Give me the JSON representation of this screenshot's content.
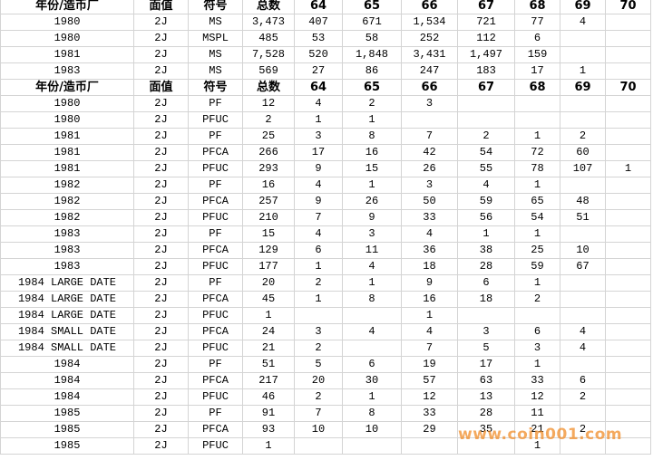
{
  "table": {
    "sections": [
      {
        "header": [
          "年份/造币厂",
          "面值",
          "符号",
          "总数",
          "64",
          "65",
          "66",
          "67",
          "68",
          "69",
          "70"
        ],
        "rows": [
          [
            "1980",
            "2J",
            "MS",
            "3,473",
            "407",
            "671",
            "1,534",
            "721",
            "77",
            "4",
            null
          ],
          [
            "1980",
            "2J",
            "MSPL",
            "485",
            "53",
            "58",
            "252",
            "112",
            "6",
            null,
            null
          ],
          [
            "1981",
            "2J",
            "MS",
            "7,528",
            "520",
            "1,848",
            "3,431",
            "1,497",
            "159",
            null,
            null
          ],
          [
            "1983",
            "2J",
            "MS",
            "569",
            "27",
            "86",
            "247",
            "183",
            "17",
            "1",
            null
          ]
        ]
      },
      {
        "header": [
          "年份/造币厂",
          "面值",
          "符号",
          "总数",
          "64",
          "65",
          "66",
          "67",
          "68",
          "69",
          "70"
        ],
        "rows": [
          [
            "1980",
            "2J",
            "PF",
            "12",
            "4",
            "2",
            "3",
            null,
            null,
            null,
            null
          ],
          [
            "1980",
            "2J",
            "PFUC",
            "2",
            "1",
            "1",
            null,
            null,
            null,
            null,
            null
          ],
          [
            "1981",
            "2J",
            "PF",
            "25",
            "3",
            "8",
            "7",
            "2",
            "1",
            "2",
            null
          ],
          [
            "1981",
            "2J",
            "PFCA",
            "266",
            "17",
            "16",
            "42",
            "54",
            "72",
            "60",
            null
          ],
          [
            "1981",
            "2J",
            "PFUC",
            "293",
            "9",
            "15",
            "26",
            "55",
            "78",
            "107",
            "1"
          ],
          [
            "1982",
            "2J",
            "PF",
            "16",
            "4",
            "1",
            "3",
            "4",
            "1",
            null,
            null
          ],
          [
            "1982",
            "2J",
            "PFCA",
            "257",
            "9",
            "26",
            "50",
            "59",
            "65",
            "48",
            null
          ],
          [
            "1982",
            "2J",
            "PFUC",
            "210",
            "7",
            "9",
            "33",
            "56",
            "54",
            "51",
            null
          ],
          [
            "1983",
            "2J",
            "PF",
            "15",
            "4",
            "3",
            "4",
            "1",
            "1",
            null,
            null
          ],
          [
            "1983",
            "2J",
            "PFCA",
            "129",
            "6",
            "11",
            "36",
            "38",
            "25",
            "10",
            null
          ],
          [
            "1983",
            "2J",
            "PFUC",
            "177",
            "1",
            "4",
            "18",
            "28",
            "59",
            "67",
            null
          ],
          [
            "1984 LARGE DATE",
            "2J",
            "PF",
            "20",
            "2",
            "1",
            "9",
            "6",
            "1",
            null,
            null
          ],
          [
            "1984 LARGE DATE",
            "2J",
            "PFCA",
            "45",
            "1",
            "8",
            "16",
            "18",
            "2",
            null,
            null
          ],
          [
            "1984 LARGE DATE",
            "2J",
            "PFUC",
            "1",
            null,
            null,
            "1",
            null,
            null,
            null,
            null
          ],
          [
            "1984 SMALL DATE",
            "2J",
            "PFCA",
            "24",
            "3",
            "4",
            "4",
            "3",
            "6",
            "4",
            null
          ],
          [
            "1984 SMALL DATE",
            "2J",
            "PFUC",
            "21",
            "2",
            null,
            "7",
            "5",
            "3",
            "4",
            null
          ],
          [
            "1984",
            "2J",
            "PF",
            "51",
            "5",
            "6",
            "19",
            "17",
            "1",
            null,
            null
          ],
          [
            "1984",
            "2J",
            "PFCA",
            "217",
            "20",
            "30",
            "57",
            "63",
            "33",
            "6",
            null
          ],
          [
            "1984",
            "2J",
            "PFUC",
            "46",
            "2",
            "1",
            "12",
            "13",
            "12",
            "2",
            null
          ],
          [
            "1985",
            "2J",
            "PF",
            "91",
            "7",
            "8",
            "33",
            "28",
            "11",
            null,
            null
          ],
          [
            "1985",
            "2J",
            "PFCA",
            "93",
            "10",
            "10",
            "29",
            "35",
            "21",
            "2",
            null
          ],
          [
            "1985",
            "2J",
            "PFUC",
            "1",
            null,
            null,
            null,
            null,
            "1",
            null,
            null
          ]
        ]
      }
    ]
  },
  "watermark": "www.coin001.com"
}
